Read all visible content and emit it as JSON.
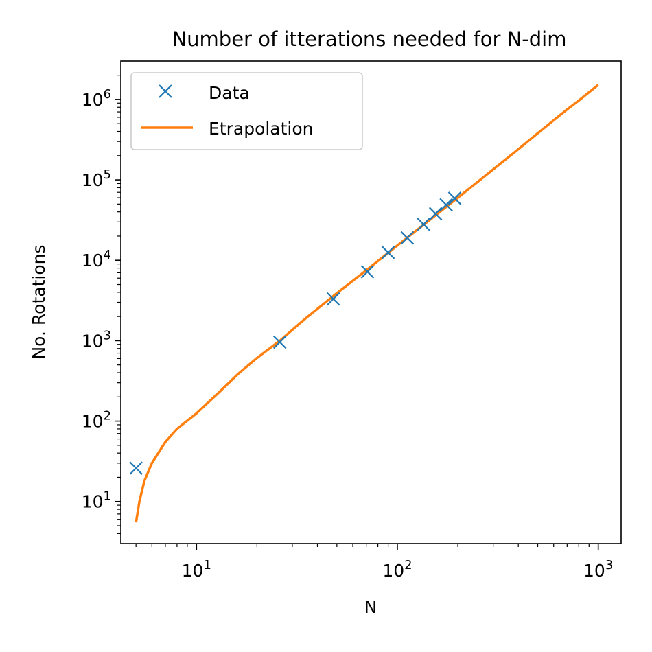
{
  "chart_data": {
    "type": "line",
    "title": "Number of itterations needed for N-dim",
    "xlabel": "N",
    "ylabel": "No. Rotations",
    "xscale": "log",
    "yscale": "log",
    "xlim": [
      4.2,
      1300
    ],
    "ylim": [
      3,
      3000000
    ],
    "grid": false,
    "legend_position": "upper left",
    "x_ticks": [
      {
        "value": 10,
        "base": "10",
        "exp": "1"
      },
      {
        "value": 100,
        "base": "10",
        "exp": "2"
      },
      {
        "value": 1000,
        "base": "10",
        "exp": "3"
      }
    ],
    "y_ticks": [
      {
        "value": 10,
        "base": "10",
        "exp": "1"
      },
      {
        "value": 100,
        "base": "10",
        "exp": "2"
      },
      {
        "value": 1000,
        "base": "10",
        "exp": "3"
      },
      {
        "value": 10000,
        "base": "10",
        "exp": "4"
      },
      {
        "value": 100000,
        "base": "10",
        "exp": "5"
      },
      {
        "value": 1000000,
        "base": "10",
        "exp": "6"
      }
    ],
    "series": [
      {
        "name": "Data",
        "kind": "scatter",
        "marker": "x",
        "color": "#1f77b4",
        "x": [
          5,
          26,
          48,
          71,
          90,
          112,
          135,
          155,
          175,
          193
        ],
        "y": [
          26,
          960,
          3300,
          7200,
          12500,
          19000,
          28000,
          38000,
          49000,
          59000
        ]
      },
      {
        "name": "Etrapolation",
        "kind": "line",
        "color": "#ff7f0e",
        "x": [
          5,
          5.2,
          5.5,
          6,
          7,
          8,
          10,
          13,
          16,
          20,
          26,
          35,
          50,
          70,
          100,
          150,
          200,
          300,
          400,
          500,
          600,
          700,
          800,
          900,
          1000
        ],
        "y": [
          5.5,
          10,
          18,
          30,
          55,
          80,
          125,
          230,
          380,
          610,
          1000,
          1900,
          3900,
          7500,
          15300,
          34000,
          60000,
          135000,
          240000,
          380000,
          550000,
          750000,
          970000,
          1230000,
          1520000
        ]
      }
    ]
  }
}
